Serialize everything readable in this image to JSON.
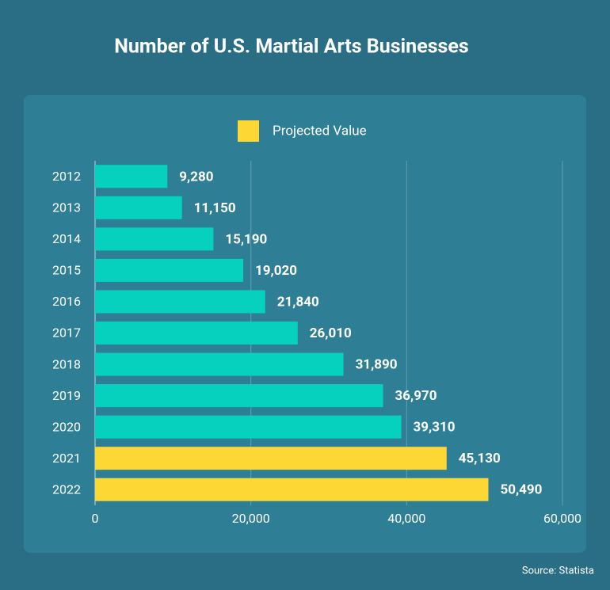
{
  "chart_data": {
    "type": "bar",
    "orientation": "horizontal",
    "title": "Number of U.S. Martial Arts Businesses",
    "categories": [
      "2012",
      "2013",
      "2014",
      "2015",
      "2016",
      "2017",
      "2018",
      "2019",
      "2020",
      "2021",
      "2022"
    ],
    "values": [
      9280,
      11150,
      15190,
      19020,
      21840,
      26010,
      31890,
      36970,
      39310,
      45130,
      50490
    ],
    "value_labels": [
      "9,280",
      "11,150",
      "15,190",
      "19,020",
      "21,840",
      "26,010",
      "31,890",
      "36,970",
      "39,310",
      "45,130",
      "50,490"
    ],
    "colors": [
      "#06d1be",
      "#06d1be",
      "#06d1be",
      "#06d1be",
      "#06d1be",
      "#06d1be",
      "#06d1be",
      "#06d1be",
      "#06d1be",
      "#fdd835",
      "#fdd835"
    ],
    "legend": [
      {
        "name": "Projected Value",
        "color": "#fdd835"
      }
    ],
    "xlim": [
      0,
      60000
    ],
    "xticks": [
      0,
      {
        "value": 20000,
        "label": "20,000"
      },
      {
        "value": 40000,
        "label": "40,000"
      },
      {
        "value": 60000,
        "label": "60,000"
      }
    ],
    "grid": true,
    "source": "Source: Statista"
  }
}
